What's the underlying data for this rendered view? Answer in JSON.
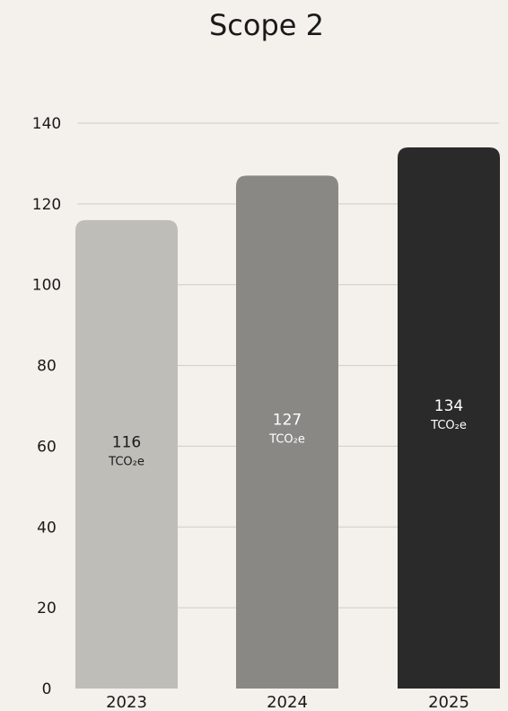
{
  "chart_data": {
    "type": "bar",
    "title": "Scope 2",
    "categories": [
      "2023",
      "2024",
      "2025"
    ],
    "values": [
      116,
      127,
      134
    ],
    "unit_label": "TCO₂e",
    "value_labels": [
      "116",
      "127",
      "134"
    ],
    "bar_colors": [
      "#bfbdb8",
      "#8a8885",
      "#2a2a2a"
    ],
    "label_colors": [
      "#1a1a1a",
      "#ffffff",
      "#ffffff"
    ],
    "ylim": [
      0,
      140
    ],
    "yticks": [
      0,
      20,
      40,
      60,
      80,
      100,
      120,
      140
    ],
    "ytick_labels": [
      "0",
      "20",
      "40",
      "60",
      "80",
      "100",
      "120",
      "140"
    ],
    "grid": true,
    "xlabel": "",
    "ylabel": ""
  }
}
